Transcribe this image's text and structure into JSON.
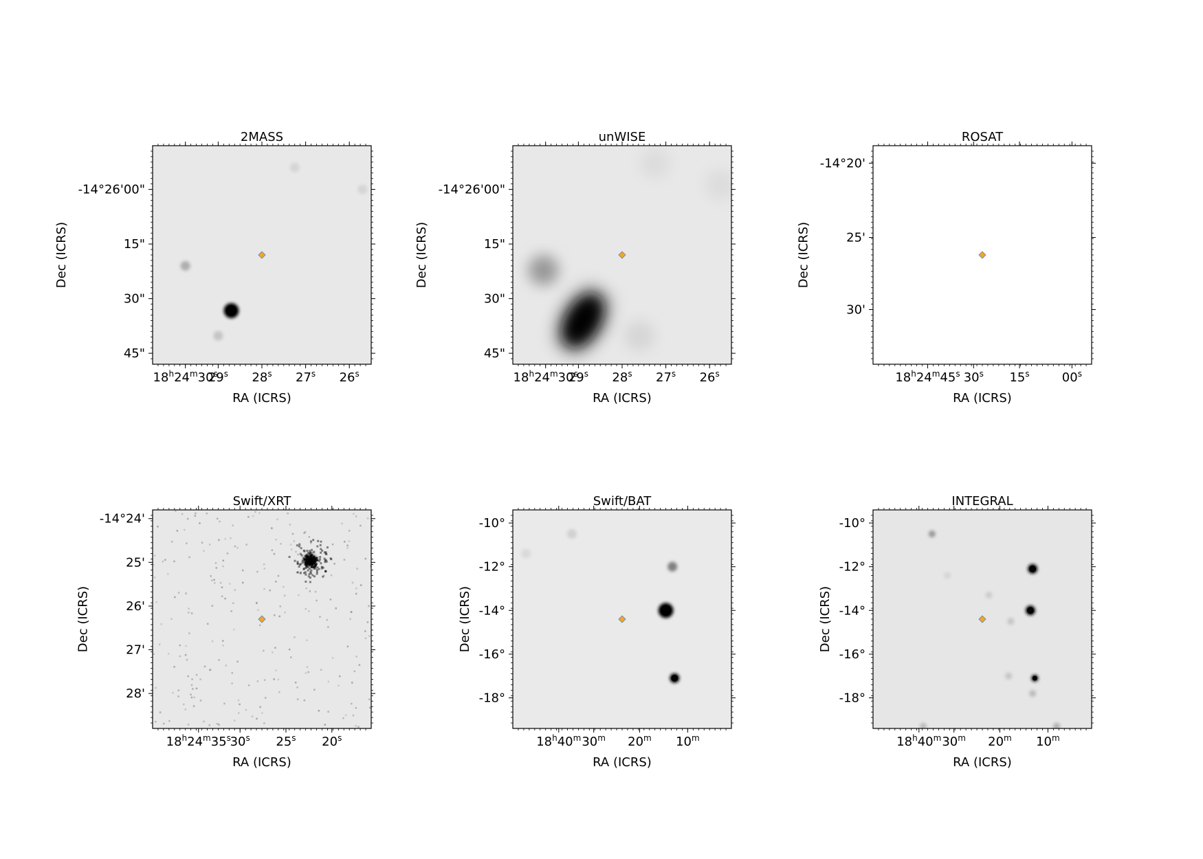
{
  "figure": {
    "panels": [
      {
        "title": "2MASS",
        "xlabel": "RA (ICRS)",
        "ylabel": "Dec (ICRS)",
        "xticks": [
          {
            "parts": [
              [
                "18",
                ""
              ],
              [
                "h",
                "sup"
              ],
              [
                "24",
                ""
              ],
              [
                "m",
                "sup"
              ],
              [
                "30",
                ""
              ],
              [
                "s",
                "sup"
              ]
            ]
          },
          {
            "parts": [
              [
                "29",
                ""
              ],
              [
                "s",
                "sup"
              ]
            ]
          },
          {
            "parts": [
              [
                "28",
                ""
              ],
              [
                "s",
                "sup"
              ]
            ]
          },
          {
            "parts": [
              [
                "27",
                ""
              ],
              [
                "s",
                "sup"
              ]
            ]
          },
          {
            "parts": [
              [
                "26",
                ""
              ],
              [
                "s",
                "sup"
              ]
            ]
          }
        ],
        "yticks": [
          "-14°26'00\"",
          "15\"",
          "30\"",
          "45\""
        ],
        "background": "#e8e8e8",
        "sources": [
          {
            "x": 0.36,
            "y": 0.755,
            "intensity": 1.0,
            "size": "medium"
          },
          {
            "x": 0.15,
            "y": 0.55,
            "intensity": 0.25,
            "size": "small"
          },
          {
            "x": 0.3,
            "y": 0.87,
            "intensity": 0.15,
            "size": "small"
          },
          {
            "x": 0.65,
            "y": 0.1,
            "intensity": 0.08,
            "size": "small"
          },
          {
            "x": 0.96,
            "y": 0.2,
            "intensity": 0.08,
            "size": "small"
          }
        ],
        "marker": {
          "x": 0.5,
          "y": 0.5
        }
      },
      {
        "title": "unWISE",
        "xlabel": "RA (ICRS)",
        "ylabel": "Dec (ICRS)",
        "xticks": [
          {
            "parts": [
              [
                "18",
                ""
              ],
              [
                "h",
                "sup"
              ],
              [
                "24",
                ""
              ],
              [
                "m",
                "sup"
              ],
              [
                "30",
                ""
              ],
              [
                "s",
                "sup"
              ]
            ]
          },
          {
            "parts": [
              [
                "29",
                ""
              ],
              [
                "s",
                "sup"
              ]
            ]
          },
          {
            "parts": [
              [
                "28",
                ""
              ],
              [
                "s",
                "sup"
              ]
            ]
          },
          {
            "parts": [
              [
                "27",
                ""
              ],
              [
                "s",
                "sup"
              ]
            ]
          },
          {
            "parts": [
              [
                "26",
                ""
              ],
              [
                "s",
                "sup"
              ]
            ]
          }
        ],
        "yticks": [
          "-14°26'00\"",
          "15\"",
          "30\"",
          "45\""
        ],
        "background": "#e8e8e8",
        "sources": [
          {
            "x": 0.32,
            "y": 0.8,
            "intensity": 1.0,
            "size": "elongated"
          },
          {
            "x": 0.14,
            "y": 0.57,
            "intensity": 0.35,
            "size": "large"
          },
          {
            "x": 0.58,
            "y": 0.87,
            "intensity": 0.08,
            "size": "large"
          },
          {
            "x": 0.95,
            "y": 0.18,
            "intensity": 0.05,
            "size": "large"
          },
          {
            "x": 0.65,
            "y": 0.08,
            "intensity": 0.05,
            "size": "large"
          }
        ],
        "marker": {
          "x": 0.5,
          "y": 0.5
        }
      },
      {
        "title": "ROSAT",
        "xlabel": "RA (ICRS)",
        "ylabel": "Dec (ICRS)",
        "xticks": [
          {
            "parts": [
              [
                "18",
                ""
              ],
              [
                "h",
                "sup"
              ],
              [
                "24",
                ""
              ],
              [
                "m",
                "sup"
              ],
              [
                "45",
                ""
              ],
              [
                "s",
                "sup"
              ]
            ]
          },
          {
            "parts": [
              [
                "30",
                ""
              ],
              [
                "s",
                "sup"
              ]
            ]
          },
          {
            "parts": [
              [
                "15",
                ""
              ],
              [
                "s",
                "sup"
              ]
            ]
          },
          {
            "parts": [
              [
                "00",
                ""
              ],
              [
                "s",
                "sup"
              ]
            ]
          }
        ],
        "yticks": [
          "-14°20'",
          "25'",
          "30'"
        ],
        "background": "#ffffff",
        "sources": [],
        "marker": {
          "x": 0.5,
          "y": 0.5
        }
      },
      {
        "title": "Swift/XRT",
        "xlabel": "RA (ICRS)",
        "ylabel": "Dec (ICRS)",
        "xticks": [
          {
            "parts": [
              [
                "18",
                ""
              ],
              [
                "h",
                "sup"
              ],
              [
                "24",
                ""
              ],
              [
                "m",
                "sup"
              ],
              [
                "35",
                ""
              ],
              [
                "s",
                "sup"
              ]
            ]
          },
          {
            "parts": [
              [
                "30",
                ""
              ],
              [
                "s",
                "sup"
              ]
            ]
          },
          {
            "parts": [
              [
                "25",
                ""
              ],
              [
                "s",
                "sup"
              ]
            ]
          },
          {
            "parts": [
              [
                "20",
                ""
              ],
              [
                "s",
                "sup"
              ]
            ]
          }
        ],
        "yticks": [
          "-14°24'",
          "25'",
          "26'",
          "27'",
          "28'"
        ],
        "background": "#e8e8e8",
        "sources": [
          {
            "x": 0.72,
            "y": 0.23,
            "intensity": 1.0,
            "size": "cluster"
          }
        ],
        "noise": true,
        "marker": {
          "x": 0.5,
          "y": 0.5
        }
      },
      {
        "title": "Swift/BAT",
        "xlabel": "RA (ICRS)",
        "ylabel": "Dec (ICRS)",
        "xticks": [
          {
            "parts": [
              [
                "18",
                ""
              ],
              [
                "h",
                "sup"
              ],
              [
                "40",
                ""
              ],
              [
                "m",
                "sup"
              ]
            ]
          },
          {
            "parts": [
              [
                "30",
                ""
              ],
              [
                "m",
                "sup"
              ]
            ]
          },
          {
            "parts": [
              [
                "20",
                ""
              ],
              [
                "m",
                "sup"
              ]
            ]
          },
          {
            "parts": [
              [
                "10",
                ""
              ],
              [
                "m",
                "sup"
              ]
            ]
          }
        ],
        "yticks": [
          "-10°",
          "-12°",
          "-14°",
          "-16°",
          "-18°"
        ],
        "background": "#eaeaea",
        "sources": [
          {
            "x": 0.7,
            "y": 0.46,
            "intensity": 1.0,
            "size": "medium"
          },
          {
            "x": 0.73,
            "y": 0.26,
            "intensity": 0.45,
            "size": "small"
          },
          {
            "x": 0.74,
            "y": 0.77,
            "intensity": 1.0,
            "size": "small"
          },
          {
            "x": 0.27,
            "y": 0.11,
            "intensity": 0.1,
            "size": "small"
          },
          {
            "x": 0.06,
            "y": 0.2,
            "intensity": 0.06,
            "size": "small"
          }
        ],
        "marker": {
          "x": 0.5,
          "y": 0.5
        }
      },
      {
        "title": "INTEGRAL",
        "xlabel": "RA (ICRS)",
        "ylabel": "Dec (ICRS)",
        "xticks": [
          {
            "parts": [
              [
                "18",
                ""
              ],
              [
                "h",
                "sup"
              ],
              [
                "40",
                ""
              ],
              [
                "m",
                "sup"
              ]
            ]
          },
          {
            "parts": [
              [
                "30",
                ""
              ],
              [
                "m",
                "sup"
              ]
            ]
          },
          {
            "parts": [
              [
                "20",
                ""
              ],
              [
                "m",
                "sup"
              ]
            ]
          },
          {
            "parts": [
              [
                "10",
                ""
              ],
              [
                "m",
                "sup"
              ]
            ]
          }
        ],
        "yticks": [
          "-10°",
          "-12°",
          "-14°",
          "-16°",
          "-18°"
        ],
        "background": "#e6e6e6",
        "sources": [
          {
            "x": 0.72,
            "y": 0.46,
            "intensity": 1.0,
            "size": "small"
          },
          {
            "x": 0.73,
            "y": 0.27,
            "intensity": 1.0,
            "size": "small"
          },
          {
            "x": 0.74,
            "y": 0.77,
            "intensity": 1.0,
            "size": "tiny"
          },
          {
            "x": 0.27,
            "y": 0.11,
            "intensity": 0.35,
            "size": "tiny"
          },
          {
            "x": 0.63,
            "y": 0.51,
            "intensity": 0.15,
            "size": "tiny"
          },
          {
            "x": 0.53,
            "y": 0.39,
            "intensity": 0.12,
            "size": "tiny"
          },
          {
            "x": 0.62,
            "y": 0.76,
            "intensity": 0.15,
            "size": "tiny"
          },
          {
            "x": 0.73,
            "y": 0.84,
            "intensity": 0.2,
            "size": "tiny"
          },
          {
            "x": 0.84,
            "y": 0.99,
            "intensity": 0.25,
            "size": "tiny"
          },
          {
            "x": 0.23,
            "y": 0.99,
            "intensity": 0.2,
            "size": "tiny"
          },
          {
            "x": 0.34,
            "y": 0.3,
            "intensity": 0.08,
            "size": "tiny"
          }
        ],
        "marker": {
          "x": 0.5,
          "y": 0.5
        }
      }
    ],
    "marker_colors": {
      "fill": "#f5a623",
      "edge": "#5a86b8"
    }
  }
}
